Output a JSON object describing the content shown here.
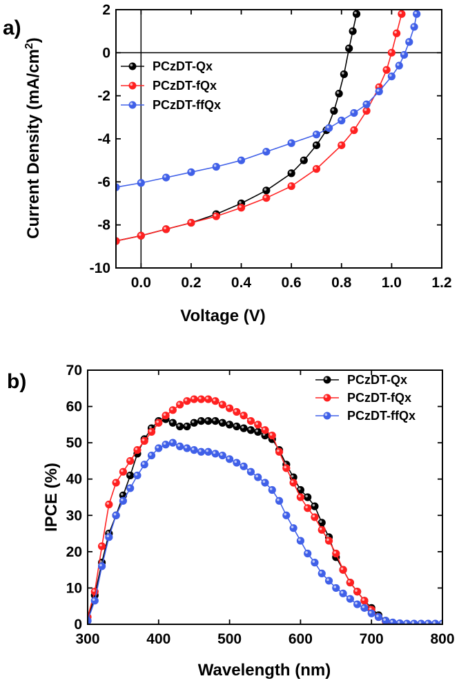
{
  "chart_data": [
    {
      "panel": "a)",
      "type": "line",
      "xlabel": "Voltage (V)",
      "ylabel": "Current Density (mA/cm",
      "ylabel_sup": "2",
      "ylabel_close": ")",
      "xlim": [
        -0.1,
        1.2
      ],
      "ylim": [
        -10,
        2
      ],
      "xticks": [
        "0.0",
        "0.2",
        "0.4",
        "0.6",
        "0.8",
        "1.0",
        "1.2"
      ],
      "xtick_values": [
        0,
        0.2,
        0.4,
        0.6,
        0.8,
        1.0,
        1.2
      ],
      "yticks": [
        "-10",
        "-8",
        "-6",
        "-4",
        "-2",
        "0",
        "2"
      ],
      "ytick_values": [
        -10,
        -8,
        -6,
        -4,
        -2,
        0,
        2
      ],
      "reference_lines": {
        "x": 0,
        "y": 0
      },
      "legend_position": "top-left",
      "series": [
        {
          "name": "PCzDT-Qx",
          "color": "#000000",
          "x": [
            -0.1,
            0.0,
            0.1,
            0.2,
            0.3,
            0.4,
            0.5,
            0.6,
            0.65,
            0.7,
            0.74,
            0.77,
            0.79,
            0.81,
            0.83,
            0.845,
            0.86
          ],
          "y": [
            -8.75,
            -8.5,
            -8.2,
            -7.9,
            -7.5,
            -7.0,
            -6.4,
            -5.6,
            -5.0,
            -4.3,
            -3.6,
            -2.7,
            -1.9,
            -1.0,
            0.2,
            1.0,
            1.8
          ]
        },
        {
          "name": "PCzDT-fQx",
          "color": "#ff2020",
          "x": [
            -0.1,
            0.0,
            0.1,
            0.2,
            0.3,
            0.4,
            0.5,
            0.6,
            0.7,
            0.8,
            0.85,
            0.9,
            0.95,
            0.98,
            1.0,
            1.02,
            1.04
          ],
          "y": [
            -8.75,
            -8.5,
            -8.2,
            -7.9,
            -7.6,
            -7.2,
            -6.75,
            -6.2,
            -5.4,
            -4.3,
            -3.6,
            -2.7,
            -1.6,
            -0.8,
            0.0,
            0.9,
            1.8
          ]
        },
        {
          "name": "PCzDT-ffQx",
          "color": "#4060e8",
          "x": [
            -0.1,
            0.0,
            0.1,
            0.2,
            0.3,
            0.4,
            0.5,
            0.6,
            0.7,
            0.75,
            0.8,
            0.85,
            0.9,
            0.95,
            1.0,
            1.03,
            1.05,
            1.07,
            1.09,
            1.1
          ],
          "y": [
            -6.25,
            -6.05,
            -5.8,
            -5.55,
            -5.3,
            -5.0,
            -4.6,
            -4.2,
            -3.8,
            -3.5,
            -3.15,
            -2.8,
            -2.4,
            -1.8,
            -1.1,
            -0.6,
            -0.1,
            0.5,
            1.2,
            1.8
          ]
        }
      ]
    },
    {
      "panel": "b)",
      "type": "line",
      "xlabel": "Wavelength (nm)",
      "ylabel": "IPCE (%)",
      "xlim": [
        300,
        800
      ],
      "ylim": [
        0,
        70
      ],
      "xticks": [
        "300",
        "400",
        "500",
        "600",
        "700",
        "800"
      ],
      "xtick_values": [
        300,
        400,
        500,
        600,
        700,
        800
      ],
      "yticks": [
        "0",
        "10",
        "20",
        "30",
        "40",
        "50",
        "60",
        "70"
      ],
      "ytick_values": [
        0,
        10,
        20,
        30,
        40,
        50,
        60,
        70
      ],
      "legend_position": "top-right",
      "series": [
        {
          "name": "PCzDT-Qx",
          "color": "#000000",
          "x": [
            300,
            310,
            320,
            330,
            340,
            350,
            360,
            370,
            380,
            390,
            400,
            410,
            420,
            430,
            440,
            450,
            460,
            470,
            480,
            490,
            500,
            510,
            520,
            530,
            540,
            550,
            560,
            570,
            580,
            590,
            600,
            610,
            620,
            630,
            640,
            650,
            660,
            670,
            680,
            690,
            700,
            710,
            720,
            730,
            740,
            750,
            760,
            770,
            780,
            790,
            800
          ],
          "y": [
            1,
            8,
            17,
            25,
            30,
            35.5,
            41,
            47,
            51,
            54,
            56,
            56.5,
            55.5,
            54.5,
            54.5,
            55.5,
            56,
            56,
            56,
            55.5,
            55,
            54.5,
            54,
            53.5,
            53,
            52,
            51,
            48,
            44,
            40.5,
            37,
            35,
            32.5,
            28,
            24,
            18.5,
            15,
            11.5,
            9,
            6.5,
            4.5,
            2.5,
            1,
            0.3,
            0.2,
            0.1,
            0.1,
            0.1,
            0.1,
            0.1,
            0.1
          ]
        },
        {
          "name": "PCzDT-fQx",
          "color": "#ff2020",
          "x": [
            300,
            310,
            320,
            330,
            340,
            350,
            360,
            370,
            380,
            390,
            400,
            410,
            420,
            430,
            440,
            450,
            460,
            470,
            480,
            490,
            500,
            510,
            520,
            530,
            540,
            550,
            560,
            570,
            580,
            590,
            600,
            610,
            620,
            630,
            640,
            650,
            660,
            670,
            680,
            690,
            700,
            710,
            720,
            730,
            740,
            750,
            760,
            770,
            780,
            790,
            800
          ],
          "y": [
            2,
            9,
            21.5,
            33,
            39,
            42,
            45,
            48,
            50.5,
            53,
            55.5,
            57.5,
            59,
            60.5,
            61.5,
            62,
            62,
            62,
            61.5,
            60.5,
            59.5,
            58.5,
            57.5,
            56,
            55,
            53.5,
            52,
            47.5,
            43,
            39,
            35,
            32,
            29.5,
            26,
            23,
            19.5,
            15,
            11.5,
            9,
            6.5,
            4,
            2,
            0.8,
            0.3,
            0.2,
            0.1,
            0.1,
            0.1,
            0.1,
            0.1,
            0.1
          ]
        },
        {
          "name": "PCzDT-ffQx",
          "color": "#4060e8",
          "x": [
            300,
            310,
            320,
            330,
            340,
            350,
            360,
            370,
            380,
            390,
            400,
            410,
            420,
            430,
            440,
            450,
            460,
            470,
            480,
            490,
            500,
            510,
            520,
            530,
            540,
            550,
            560,
            570,
            580,
            590,
            600,
            610,
            620,
            630,
            640,
            650,
            660,
            670,
            680,
            690,
            700,
            710,
            720,
            730,
            740,
            750,
            760,
            770,
            780,
            790,
            800
          ],
          "y": [
            1,
            6.5,
            16,
            24,
            30,
            34,
            37.5,
            41,
            44,
            46.5,
            48.5,
            49.5,
            50,
            49,
            48.5,
            48,
            47.5,
            47.5,
            47,
            46.5,
            45.5,
            44.5,
            43.5,
            42,
            40.5,
            39,
            37,
            34,
            30,
            26.5,
            23,
            19.5,
            17,
            14,
            12,
            10,
            8.5,
            7,
            5.5,
            4.5,
            3,
            2,
            1,
            0.5,
            0.3,
            0.2,
            0.2,
            0.2,
            0.2,
            0.2,
            0.2
          ]
        }
      ]
    }
  ]
}
